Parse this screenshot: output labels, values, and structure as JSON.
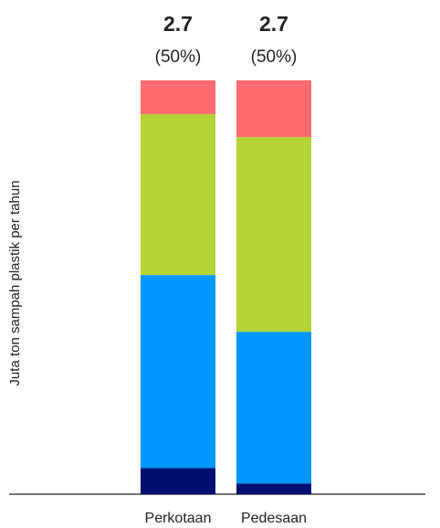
{
  "chart_data": {
    "type": "stacked_bar",
    "y_label": "Juta ton sampah plastik per tahun",
    "categories": [
      "Perkotaan",
      "Pedesaan"
    ],
    "series": [
      {
        "color": "#001070",
        "values": [
          0.17,
          0.07
        ]
      },
      {
        "color": "#0096ff",
        "values": [
          1.26,
          0.99
        ]
      },
      {
        "color": "#b5d334",
        "values": [
          1.05,
          1.27
        ]
      },
      {
        "color": "#ff6b6e",
        "values": [
          0.22,
          0.37
        ]
      }
    ],
    "totals": {
      "values": [
        2.7,
        2.7
      ]
    },
    "shares": {
      "values": [
        50,
        50
      ],
      "value_labels": [
        "(50%)",
        "(50%)"
      ]
    }
  }
}
